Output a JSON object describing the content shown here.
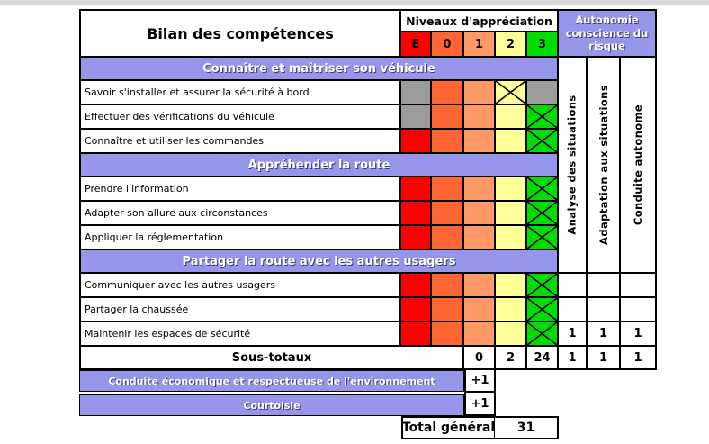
{
  "window": {
    "top_strip_color": "#D9D9D9"
  },
  "colors": {
    "accent_purple": "#9595EA",
    "na_gray": "#9C9C9C",
    "border": "#000000",
    "header_text_shadow": "#3b3b6e"
  },
  "table": {
    "title": "Bilan des compétences",
    "levels_header": "Niveaux d'appréciation",
    "levels": [
      {
        "label": "E",
        "color": "#FF0000"
      },
      {
        "label": "0",
        "color": "#FF6633"
      },
      {
        "label": "1",
        "color": "#FF9966"
      },
      {
        "label": "2",
        "color": "#FFFF99"
      },
      {
        "label": "3",
        "color": "#00DD00"
      }
    ],
    "autonomy": {
      "header": "Autonomie conscience du risque",
      "columns": [
        "Analyse des situations",
        "Adaptation aux situations",
        "Conduite autonome"
      ]
    },
    "sections": [
      {
        "label": "Connaître et maîtriser son véhicule",
        "rows": [
          {
            "label": "Savoir s'installer et assurer la sécurité à bord",
            "cells": [
              "na",
              "plain",
              "plain",
              "x",
              "na"
            ],
            "autonomy": null
          },
          {
            "label": "Effectuer des vérifications du véhicule",
            "cells": [
              "na",
              "plain",
              "plain",
              "plain",
              "x"
            ],
            "autonomy": null
          },
          {
            "label": "Connaître et utiliser les commandes",
            "cells": [
              "plain",
              "plain",
              "plain",
              "plain",
              "x"
            ],
            "autonomy": null
          }
        ]
      },
      {
        "label": "Appréhender la route",
        "rows": [
          {
            "label": "Prendre l'information",
            "cells": [
              "plain",
              "plain",
              "plain",
              "plain",
              "x"
            ],
            "autonomy": null
          },
          {
            "label": "Adapter son allure aux circonstances",
            "cells": [
              "plain",
              "plain",
              "plain",
              "plain",
              "x"
            ],
            "autonomy": null
          },
          {
            "label": "Appliquer la réglementation",
            "cells": [
              "plain",
              "plain",
              "plain",
              "plain",
              "x"
            ],
            "autonomy": null
          }
        ]
      },
      {
        "label": "Partager la route avec les autres usagers",
        "rows": [
          {
            "label": "Communiquer avec les autres usagers",
            "cells": [
              "plain",
              "plain",
              "plain",
              "plain",
              "x"
            ],
            "autonomy": [
              "",
              "",
              ""
            ]
          },
          {
            "label": "Partager la chaussée",
            "cells": [
              "plain",
              "plain",
              "plain",
              "plain",
              "x"
            ],
            "autonomy": [
              "",
              "",
              ""
            ]
          },
          {
            "label": "Maintenir les espaces de sécurité",
            "cells": [
              "plain",
              "plain",
              "plain",
              "plain",
              "x"
            ],
            "autonomy": [
              "1",
              "1",
              "1"
            ]
          }
        ]
      }
    ],
    "subtotals": {
      "label": "Sous-totaux",
      "values": [
        "0",
        "2",
        "24"
      ],
      "autonomy": [
        "1",
        "1",
        "1"
      ]
    },
    "bonus": [
      {
        "label": "Conduite économique et respectueuse de l'environnement",
        "value": "+1"
      },
      {
        "label": "Courtoisie",
        "value": "+1"
      }
    ],
    "total": {
      "label": "Total général",
      "value": "31"
    }
  }
}
